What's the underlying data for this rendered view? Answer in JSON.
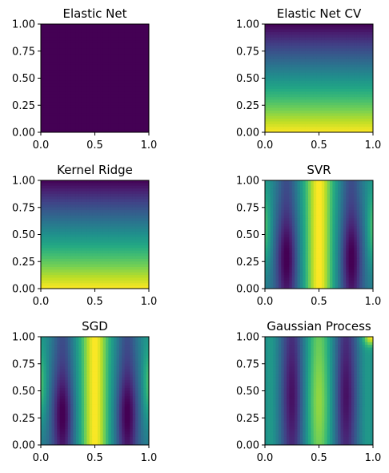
{
  "chart_data": [
    {
      "type": "heatmap",
      "title": "Elastic Net",
      "xlim": [
        0.0,
        1.0
      ],
      "ylim": [
        0.0,
        1.0
      ],
      "xticks": [
        "0.0",
        "0.5",
        "1.0"
      ],
      "yticks": [
        "0.00",
        "0.25",
        "0.50",
        "0.75",
        "1.00"
      ],
      "colormap": "viridis",
      "pattern": "uniform",
      "value_range": [
        0.0,
        0.0
      ]
    },
    {
      "type": "heatmap",
      "title": "Elastic Net CV",
      "xlim": [
        0.0,
        1.0
      ],
      "ylim": [
        0.0,
        1.0
      ],
      "xticks": [
        "0.0",
        "0.5",
        "1.0"
      ],
      "yticks": [
        "0.00",
        "0.25",
        "0.50",
        "0.75",
        "1.00"
      ],
      "colormap": "viridis",
      "pattern": "vertical-gradient (high at y=0, low at y=1)",
      "value_range": [
        0.0,
        1.0
      ]
    },
    {
      "type": "heatmap",
      "title": "Kernel Ridge",
      "xlim": [
        0.0,
        1.0
      ],
      "ylim": [
        0.0,
        1.0
      ],
      "xticks": [
        "0.0",
        "0.5",
        "1.0"
      ],
      "yticks": [
        "0.00",
        "0.25",
        "0.50",
        "0.75",
        "1.00"
      ],
      "colormap": "viridis",
      "pattern": "vertical-gradient (high at y=0, low at y=1)",
      "value_range": [
        0.0,
        1.0
      ]
    },
    {
      "type": "heatmap",
      "title": "SVR",
      "xlim": [
        0.0,
        1.0
      ],
      "ylim": [
        0.0,
        1.0
      ],
      "xticks": [
        "0.0",
        "0.5",
        "1.0"
      ],
      "yticks": [
        "0.00",
        "0.25",
        "0.50",
        "0.75",
        "1.00"
      ],
      "colormap": "viridis",
      "pattern": "vertical bands, peak at x=0.5, minima near x=0.2 and x=0.8 around y=0.3",
      "value_range": [
        0.0,
        1.0
      ]
    },
    {
      "type": "heatmap",
      "title": "SGD",
      "xlim": [
        0.0,
        1.0
      ],
      "ylim": [
        0.0,
        1.0
      ],
      "xticks": [
        "0.0",
        "0.5",
        "1.0"
      ],
      "yticks": [
        "0.00",
        "0.25",
        "0.50",
        "0.75",
        "1.00"
      ],
      "colormap": "viridis",
      "pattern": "vertical bands, peak at x=0.5, minima near x=0.2 and x=0.8 around y=0.3",
      "value_range": [
        0.0,
        1.0
      ]
    },
    {
      "type": "heatmap",
      "title": "Gaussian Process",
      "xlim": [
        0.0,
        1.0
      ],
      "ylim": [
        0.0,
        1.0
      ],
      "xticks": [
        "0.0",
        "0.5",
        "1.0"
      ],
      "yticks": [
        "0.00",
        "0.25",
        "0.50",
        "0.75",
        "1.00"
      ],
      "colormap": "viridis",
      "pattern": "vertical bands, peak at x=0.5, minima near x=0.25 and x=0.75, bright corner at top-right",
      "value_range": [
        0.0,
        1.0
      ]
    }
  ]
}
